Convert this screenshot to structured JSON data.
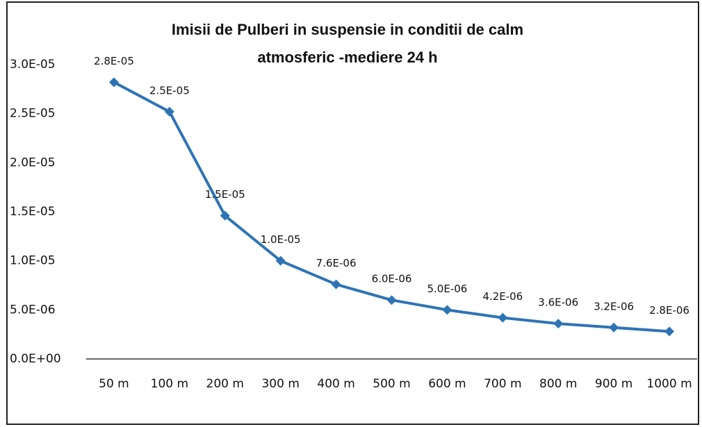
{
  "chart_data": {
    "type": "line",
    "title": [
      "Imisii de Pulberi in suspensie  in conditii de calm",
      "atmosferic -mediere 24 h"
    ],
    "categories": [
      "50 m",
      "100 m",
      "200 m",
      "300 m",
      "400 m",
      "500 m",
      "600 m",
      "700 m",
      "800 m",
      "900 m",
      "1000 m"
    ],
    "series": [
      {
        "color": "#2e74b5",
        "values": [
          2.82e-05,
          2.52e-05,
          1.46e-05,
          1e-05,
          7.6e-06,
          6e-06,
          5e-06,
          4.2e-06,
          3.6e-06,
          3.2e-06,
          2.8e-06
        ],
        "value_labels": [
          "2.8E-05",
          "2.5E-05",
          "1.5E-05",
          "1.0E-05",
          "7.6E-06",
          "6.0E-06",
          "5.0E-06",
          "4.2E-06",
          "3.6E-06",
          "3.2E-06",
          "2.8E-06"
        ]
      }
    ],
    "ylim": [
      0,
      3e-05
    ],
    "yticks": [
      {
        "value": 0,
        "label": "0.0E+00"
      },
      {
        "value": 5e-06,
        "label": "5.0E-06"
      },
      {
        "value": 1e-05,
        "label": "1.0E-05"
      },
      {
        "value": 1.5e-05,
        "label": "1.5E-05"
      },
      {
        "value": 2e-05,
        "label": "2.0E-05"
      },
      {
        "value": 2.5e-05,
        "label": "2.5E-05"
      },
      {
        "value": 3e-05,
        "label": "3.0E-05"
      }
    ],
    "grid": false
  }
}
